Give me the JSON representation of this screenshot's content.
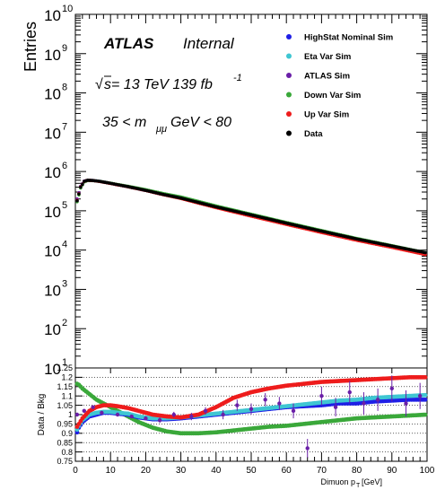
{
  "chart_data": {
    "type": "scatter",
    "upper_panel": {
      "ylabel": "Entries",
      "yscale": "log",
      "ylim": [
        10,
        10000000000
      ],
      "yticks": [
        {
          "value": 10,
          "base": "10",
          "exp": "1"
        },
        {
          "value": 100,
          "base": "10",
          "exp": "2"
        },
        {
          "value": 1000,
          "base": "10",
          "exp": "3"
        },
        {
          "value": 10000,
          "base": "10",
          "exp": "4"
        },
        {
          "value": 100000,
          "base": "10",
          "exp": "5"
        },
        {
          "value": 1000000,
          "base": "10",
          "exp": "6"
        },
        {
          "value": 10000000,
          "base": "10",
          "exp": "7"
        },
        {
          "value": 100000000,
          "base": "10",
          "exp": "8"
        },
        {
          "value": 1000000000,
          "base": "10",
          "exp": "9"
        },
        {
          "value": 10000000000,
          "base": "10",
          "exp": "10"
        }
      ],
      "annotations": {
        "atlas": "ATLAS",
        "internal": "Internal",
        "sqrt_s": "s= 13 TeV  139 fb",
        "sqrt_s_exp": "-1",
        "mass_range_left": "35 < m",
        "mass_range_sub": "μμ",
        "mass_range_right": " GeV < 80"
      },
      "legend_position": "top-right",
      "series": [
        {
          "name": "HighStat Nominal Sim",
          "color": "#1f1fe6",
          "x": [
            0.5,
            1.5,
            2.5,
            3.5,
            5,
            7,
            10,
            15,
            20,
            25,
            30,
            40,
            50,
            60,
            70,
            80,
            90,
            99.5
          ],
          "y": [
            180000,
            400000,
            560000,
            600000,
            590000,
            560000,
            500000,
            410000,
            330000,
            260000,
            210000,
            125000,
            78000,
            48000,
            30000,
            19000,
            12500,
            8500
          ]
        },
        {
          "name": "Eta Var Sim",
          "color": "#3fc6d2",
          "x": [
            0.5,
            1.5,
            2.5,
            3.5,
            5,
            7,
            10,
            15,
            20,
            25,
            30,
            40,
            50,
            60,
            70,
            80,
            90,
            99.5
          ],
          "y": [
            190000,
            410000,
            565000,
            605000,
            592000,
            562000,
            501000,
            410000,
            330000,
            260000,
            210000,
            125000,
            78000,
            48000,
            30000,
            19000,
            12500,
            8500
          ]
        },
        {
          "name": "ATLAS Sim",
          "color": "#6a1fa8",
          "x": [
            0.5,
            1.5,
            2.5,
            3.5,
            5,
            7,
            10,
            15,
            20,
            25,
            30,
            40,
            50,
            60,
            70,
            80,
            90,
            99.5
          ],
          "y": [
            200000,
            420000,
            570000,
            600000,
            590000,
            560000,
            500000,
            410000,
            330000,
            260000,
            210000,
            125000,
            78000,
            48000,
            30000,
            19000,
            12500,
            8300
          ]
        },
        {
          "name": "Down Var Sim",
          "color": "#3aa83a",
          "x": [
            0.5,
            1.5,
            2.5,
            3.5,
            5,
            7,
            10,
            15,
            20,
            25,
            30,
            40,
            50,
            60,
            70,
            80,
            90,
            99.5
          ],
          "y": [
            170000,
            380000,
            540000,
            590000,
            585000,
            560000,
            505000,
            420000,
            345000,
            275000,
            225000,
            133000,
            82000,
            50500,
            31500,
            19800,
            13000,
            8600
          ]
        },
        {
          "name": "Up Var Sim",
          "color": "#ee1c1c",
          "x": [
            0.5,
            1.5,
            2.5,
            3.5,
            5,
            7,
            10,
            15,
            20,
            25,
            30,
            40,
            50,
            60,
            70,
            80,
            90,
            99.5
          ],
          "y": [
            185000,
            405000,
            560000,
            600000,
            588000,
            556000,
            495000,
            408000,
            328000,
            257000,
            205000,
            120000,
            73000,
            45000,
            28000,
            17700,
            11700,
            7700
          ]
        },
        {
          "name": "Data",
          "color": "#000000",
          "x": [
            0.5,
            1.5,
            2.5,
            3.5,
            5,
            7,
            10,
            15,
            20,
            25,
            30,
            40,
            50,
            60,
            70,
            80,
            90,
            99.5
          ],
          "y": [
            180000,
            400000,
            560000,
            600000,
            590000,
            560000,
            500000,
            412000,
            331000,
            261000,
            211000,
            126000,
            78500,
            48500,
            30300,
            19200,
            12700,
            8600
          ]
        }
      ]
    },
    "lower_panel": {
      "ylabel": "Data / Bkg",
      "xlabel": "Dimuon p",
      "xlabel_sub": "T",
      "xlabel_unit": " [GeV]",
      "xlim": [
        0,
        100
      ],
      "ylim": [
        0.75,
        1.25
      ],
      "xticks": [
        "0",
        "10",
        "20",
        "30",
        "40",
        "50",
        "60",
        "70",
        "80",
        "90",
        "100"
      ],
      "yticks": [
        "0.75",
        "0.8",
        "0.85",
        "0.9",
        "0.95",
        "1",
        "1.05",
        "1.1",
        "1.15",
        "1.2",
        "1.25"
      ],
      "series": [
        {
          "name": "Down Var Sim",
          "color": "#3aa83a",
          "x": [
            0,
            1,
            2,
            4,
            6,
            8,
            10,
            12,
            15,
            18,
            22,
            26,
            30,
            35,
            40,
            45,
            50,
            55,
            60,
            65,
            70,
            75,
            80,
            85,
            90,
            95,
            100
          ],
          "y": [
            1.17,
            1.16,
            1.14,
            1.11,
            1.08,
            1.06,
            1.04,
            1.02,
            0.99,
            0.96,
            0.93,
            0.91,
            0.9,
            0.9,
            0.905,
            0.915,
            0.925,
            0.935,
            0.94,
            0.95,
            0.96,
            0.97,
            0.98,
            0.985,
            0.99,
            0.995,
            1.0
          ]
        },
        {
          "name": "HighStat Nominal Sim",
          "color": "#1f1fe6",
          "x": [
            0,
            1,
            2,
            4,
            6,
            8,
            10,
            12,
            15,
            18,
            22,
            26,
            30,
            35,
            40,
            45,
            50,
            55,
            60,
            65,
            70,
            75,
            80,
            85,
            90,
            95,
            100
          ],
          "y": [
            0.88,
            0.93,
            0.96,
            0.99,
            1.0,
            1.01,
            1.01,
            1.005,
            1.0,
            0.985,
            0.975,
            0.975,
            0.98,
            0.99,
            1.0,
            1.01,
            1.02,
            1.03,
            1.04,
            1.045,
            1.05,
            1.06,
            1.06,
            1.07,
            1.075,
            1.08,
            1.08
          ]
        },
        {
          "name": "Eta Var Sim",
          "color": "#3fc6d2",
          "x": [
            0,
            1,
            2,
            4,
            6,
            8,
            10,
            12,
            15,
            18,
            22,
            26,
            30,
            35,
            40,
            45,
            50,
            55,
            60,
            65,
            70,
            75,
            80,
            85,
            90,
            95,
            100
          ],
          "y": [
            0.9,
            0.94,
            0.97,
            1.0,
            1.01,
            1.015,
            1.015,
            1.01,
            1.005,
            0.99,
            0.98,
            0.98,
            0.985,
            0.995,
            1.005,
            1.015,
            1.025,
            1.035,
            1.045,
            1.055,
            1.065,
            1.075,
            1.08,
            1.09,
            1.095,
            1.1,
            1.105
          ]
        },
        {
          "name": "Up Var Sim",
          "color": "#ee1c1c",
          "x": [
            0,
            1,
            2,
            4,
            6,
            8,
            10,
            12,
            15,
            18,
            22,
            26,
            30,
            35,
            40,
            45,
            50,
            55,
            60,
            65,
            70,
            75,
            80,
            85,
            90,
            95,
            100
          ],
          "y": [
            0.92,
            0.95,
            0.98,
            1.02,
            1.04,
            1.05,
            1.05,
            1.045,
            1.035,
            1.02,
            1.0,
            0.99,
            0.985,
            1.0,
            1.04,
            1.09,
            1.12,
            1.14,
            1.155,
            1.165,
            1.175,
            1.18,
            1.185,
            1.19,
            1.195,
            1.2,
            1.2
          ]
        },
        {
          "name": "ATLAS Sim",
          "color": "#6a1fa8",
          "x": [
            0.5,
            2.5,
            5,
            7.5,
            12,
            16,
            20,
            24,
            28,
            33,
            37,
            42,
            46,
            50,
            54,
            58,
            62,
            66,
            70,
            74,
            78,
            82,
            86,
            90,
            94,
            98
          ],
          "y": [
            1.0,
            1.02,
            1.04,
            1.01,
            1.0,
            0.99,
            0.98,
            0.97,
            1.0,
            0.99,
            1.02,
            1.0,
            1.05,
            1.03,
            1.08,
            1.06,
            1.02,
            0.82,
            1.1,
            1.04,
            1.12,
            1.06,
            1.08,
            1.14,
            1.06,
            1.1
          ],
          "err": [
            0.01,
            0.01,
            0.01,
            0.01,
            0.01,
            0.01,
            0.01,
            0.015,
            0.015,
            0.02,
            0.02,
            0.025,
            0.03,
            0.03,
            0.035,
            0.035,
            0.04,
            0.05,
            0.05,
            0.05,
            0.06,
            0.06,
            0.06,
            0.07,
            0.07,
            0.07
          ]
        }
      ]
    }
  }
}
